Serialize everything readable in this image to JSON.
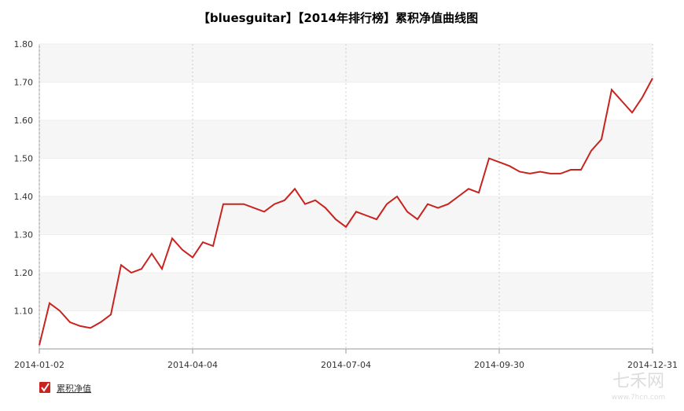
{
  "chart_data": {
    "type": "line",
    "title": "【bluesguitar】【2014年排行榜】累积净值曲线图",
    "categories": [
      "2014-01-02",
      null,
      null,
      null,
      null,
      null,
      null,
      null,
      null,
      null,
      null,
      null,
      null,
      null,
      null,
      "2014-04-04",
      null,
      null,
      null,
      null,
      null,
      null,
      null,
      null,
      null,
      null,
      null,
      null,
      null,
      null,
      "2014-07-04",
      null,
      null,
      null,
      null,
      null,
      null,
      null,
      null,
      null,
      null,
      null,
      null,
      null,
      null,
      "2014-09-30",
      null,
      null,
      null,
      null,
      null,
      null,
      null,
      null,
      null,
      null,
      null,
      null,
      null,
      null,
      "2014-12-31"
    ],
    "series": [
      {
        "name": "累积净值",
        "color": "#c8231e",
        "values": [
          1.01,
          1.12,
          1.1,
          1.07,
          1.06,
          1.055,
          1.07,
          1.09,
          1.22,
          1.2,
          1.21,
          1.25,
          1.21,
          1.29,
          1.26,
          1.24,
          1.28,
          1.27,
          1.38,
          1.38,
          1.38,
          1.37,
          1.36,
          1.38,
          1.39,
          1.42,
          1.38,
          1.39,
          1.37,
          1.34,
          1.32,
          1.36,
          1.35,
          1.34,
          1.38,
          1.4,
          1.36,
          1.34,
          1.38,
          1.37,
          1.38,
          1.4,
          1.42,
          1.41,
          1.5,
          1.49,
          1.48,
          1.465,
          1.46,
          1.465,
          1.46,
          1.46,
          1.47,
          1.47,
          1.52,
          1.55,
          1.68,
          1.65,
          1.62,
          1.66,
          1.71
        ]
      }
    ],
    "ylim": [
      1.0,
      1.8
    ],
    "yticks": [
      {
        "value": 1.1,
        "label": "1.10"
      },
      {
        "value": 1.2,
        "label": "1.20"
      },
      {
        "value": 1.3,
        "label": "1.30"
      },
      {
        "value": 1.4,
        "label": "1.40"
      },
      {
        "value": 1.5,
        "label": "1.50"
      },
      {
        "value": 1.6,
        "label": "1.60"
      },
      {
        "value": 1.7,
        "label": "1.70"
      },
      {
        "value": 1.8,
        "label": "1.80"
      }
    ],
    "grid": true,
    "legend": "bottom-left",
    "watermark": {
      "name": "七禾网",
      "url": "www.7hcn.com"
    }
  }
}
